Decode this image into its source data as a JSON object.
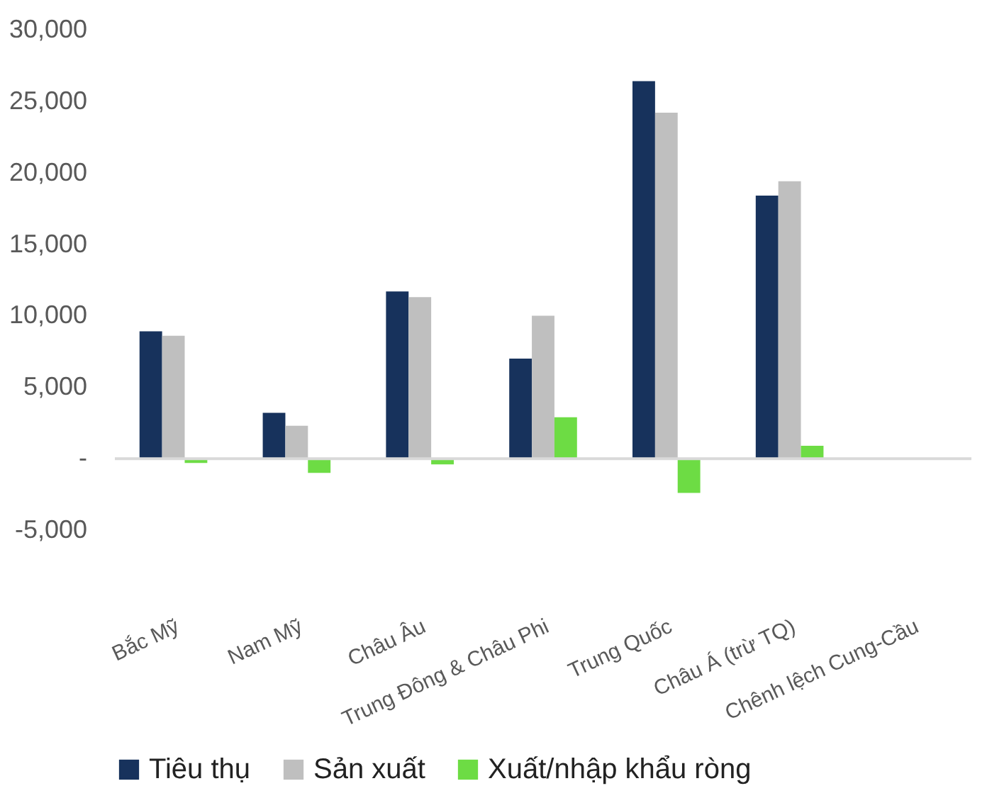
{
  "chart_data": {
    "type": "bar",
    "categories": [
      "Bắc Mỹ",
      "Nam Mỹ",
      "Châu Âu",
      "Trung Đông & Châu Phi",
      "Trung Quốc",
      "Châu Á (trừ TQ)",
      "Chênh lệch Cung-Cầu"
    ],
    "series": [
      {
        "name": "Tiêu thụ",
        "color": "#17325c",
        "values": [
          8900,
          3200,
          11700,
          7000,
          26400,
          18400,
          null
        ]
      },
      {
        "name": "Sản xuất",
        "color": "#bfbfbf",
        "values": [
          8600,
          2300,
          11300,
          10000,
          24200,
          19400,
          null
        ]
      },
      {
        "name": "Xuất/nhập khẩu ròng",
        "color": "#6ddc44",
        "values": [
          -300,
          -1000,
          -400,
          2900,
          -2400,
          900,
          null
        ]
      }
    ],
    "ylim": [
      -5000,
      30000
    ],
    "yticks": [
      {
        "value": -5000,
        "label": "-5,000"
      },
      {
        "value": 0,
        "label": "-"
      },
      {
        "value": 5000,
        "label": "5,000"
      },
      {
        "value": 10000,
        "label": "10,000"
      },
      {
        "value": 15000,
        "label": "15,000"
      },
      {
        "value": 20000,
        "label": "20,000"
      },
      {
        "value": 25000,
        "label": "25,000"
      },
      {
        "value": 30000,
        "label": "30,000"
      }
    ],
    "legend": "bottom"
  }
}
